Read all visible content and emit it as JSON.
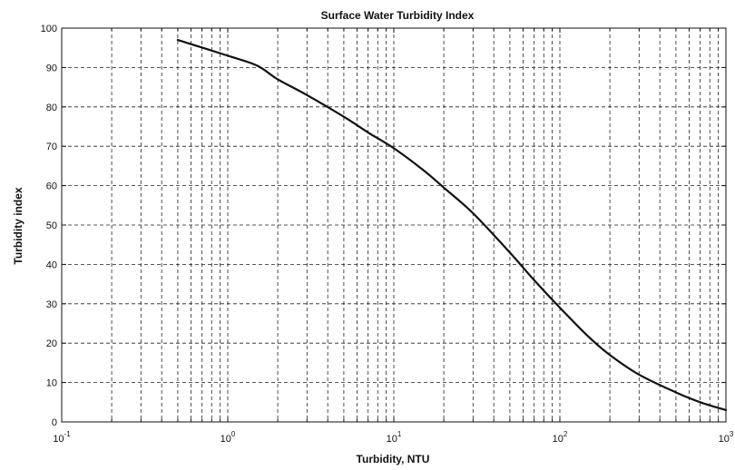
{
  "chart_data": {
    "type": "line",
    "title": "Surface Water Turbidity Index",
    "xlabel": "Turbidity, NTU",
    "ylabel": "Turbidity index",
    "x_scale": "log",
    "xlim": [
      0.1,
      1000
    ],
    "ylim": [
      0,
      100
    ],
    "grid": true,
    "grid_style": "dashed",
    "line_color": "#111111",
    "x_ticks": [
      {
        "value": 0.1,
        "base": "10",
        "exp": "-1"
      },
      {
        "value": 1,
        "base": "10",
        "exp": "0"
      },
      {
        "value": 10,
        "base": "10",
        "exp": "1"
      },
      {
        "value": 100,
        "base": "10",
        "exp": "2"
      },
      {
        "value": 1000,
        "base": "10",
        "exp": "3"
      }
    ],
    "y_ticks": [
      0,
      10,
      20,
      30,
      40,
      50,
      60,
      70,
      80,
      90,
      100
    ],
    "series": [
      {
        "x": [
          0.5,
          1.0,
          1.5,
          2,
          3,
          5,
          7,
          10,
          15,
          20,
          30,
          50,
          70,
          100,
          150,
          200,
          300,
          500,
          700,
          1000
        ],
        "y": [
          97,
          93,
          90.5,
          87,
          83,
          77.5,
          73.5,
          69.5,
          64,
          59.5,
          53,
          43,
          36,
          29,
          21.5,
          17,
          12,
          7.5,
          5,
          3
        ]
      }
    ]
  }
}
